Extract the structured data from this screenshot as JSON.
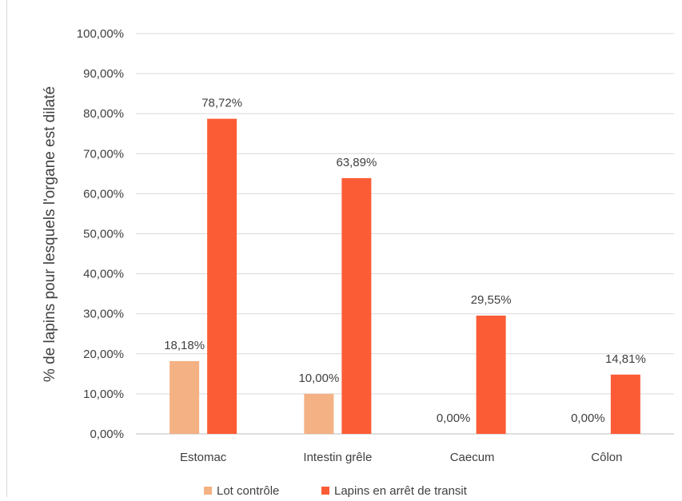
{
  "chart_data": {
    "type": "bar",
    "title": "",
    "xlabel": "",
    "ylabel": "% de lapins pour lesquels l'organe est dilaté",
    "categories": [
      "Estomac",
      "Intestin grêle",
      "Caecum",
      "Côlon"
    ],
    "series": [
      {
        "name": "Lot contrôle",
        "color": "#f4b183",
        "values": [
          18.18,
          10.0,
          0.0,
          0.0
        ],
        "labels": [
          "18,18%",
          "10,00%",
          "0,00%",
          "0,00%"
        ]
      },
      {
        "name": "Lapins en arrêt de transit",
        "color": "#fc5c35",
        "values": [
          78.72,
          63.89,
          29.55,
          14.81
        ],
        "labels": [
          "78,72%",
          "63,89%",
          "29,55%",
          "14,81%"
        ]
      }
    ],
    "ylim": [
      0,
      100
    ],
    "yticks": [
      0,
      10,
      20,
      30,
      40,
      50,
      60,
      70,
      80,
      90,
      100
    ],
    "ytick_labels": [
      "0,00%",
      "10,00%",
      "20,00%",
      "30,00%",
      "40,00%",
      "50,00%",
      "60,00%",
      "70,00%",
      "80,00%",
      "90,00%",
      "100,00%"
    ],
    "grid": true,
    "legend_position": "bottom"
  }
}
